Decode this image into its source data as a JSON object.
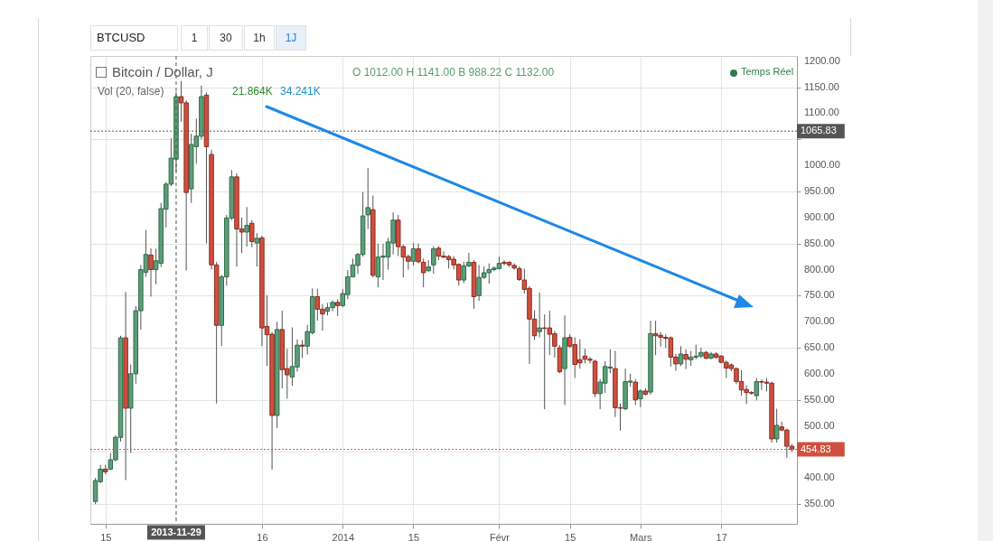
{
  "chart_data": {
    "type": "candlestick",
    "title": "Bitcoin / Dollar, J",
    "annotations": [
      "O 1012.00 H 1141.00 B 988.22 C 1132.00",
      "Vol (20, false)",
      "21.864K",
      "34.241K",
      "Temps Réel",
      "BTCUSD",
      "1",
      "30",
      "1h",
      "1J"
    ],
    "x": [
      "2013-11-13",
      "2013-11-14",
      "2013-11-15",
      "2013-11-16",
      "2013-11-17",
      "2013-11-18",
      "2013-11-19",
      "2013-11-20",
      "2013-11-21",
      "2013-11-22",
      "2013-11-23",
      "2013-11-24",
      "2013-11-25",
      "2013-11-26",
      "2013-11-27",
      "2013-11-28",
      "2013-11-29",
      "2013-11-30",
      "2013-12-01",
      "2013-12-02",
      "2013-12-03",
      "2013-12-04",
      "2013-12-05",
      "2013-12-06",
      "2013-12-07",
      "2013-12-08",
      "2013-12-09",
      "2013-12-10",
      "2013-12-11",
      "2013-12-12",
      "2013-12-13",
      "2013-12-14",
      "2013-12-15",
      "2013-12-16",
      "2013-12-17",
      "2013-12-18",
      "2013-12-19",
      "2013-12-20",
      "2013-12-21",
      "2013-12-22",
      "2013-12-23",
      "2013-12-24",
      "2013-12-25",
      "2013-12-26",
      "2013-12-27",
      "2013-12-28",
      "2013-12-29",
      "2013-12-30",
      "2013-12-31",
      "2014-01-01",
      "2014-01-02",
      "2014-01-03",
      "2014-01-04",
      "2014-01-05",
      "2014-01-06",
      "2014-01-07",
      "2014-01-08",
      "2014-01-09",
      "2014-01-10",
      "2014-01-11",
      "2014-01-12",
      "2014-01-13",
      "2014-01-14",
      "2014-01-15",
      "2014-01-16",
      "2014-01-17",
      "2014-01-18",
      "2014-01-19",
      "2014-01-20",
      "2014-01-21",
      "2014-01-22",
      "2014-01-23",
      "2014-01-24",
      "2014-01-25",
      "2014-01-26",
      "2014-01-27",
      "2014-01-28",
      "2014-01-29",
      "2014-01-30",
      "2014-01-31",
      "2014-02-01",
      "2014-02-02",
      "2014-02-03",
      "2014-02-04",
      "2014-02-05",
      "2014-02-06",
      "2014-02-07",
      "2014-02-08",
      "2014-02-09",
      "2014-02-10",
      "2014-02-11",
      "2014-02-12",
      "2014-02-13",
      "2014-02-14",
      "2014-02-15",
      "2014-02-16",
      "2014-02-17",
      "2014-02-18",
      "2014-02-19",
      "2014-02-20",
      "2014-02-21",
      "2014-02-22",
      "2014-02-23",
      "2014-02-24",
      "2014-02-25",
      "2014-02-26",
      "2014-02-27",
      "2014-02-28",
      "2014-03-01",
      "2014-03-02",
      "2014-03-03",
      "2014-03-04",
      "2014-03-05",
      "2014-03-06",
      "2014-03-07",
      "2014-03-08",
      "2014-03-09",
      "2014-03-10",
      "2014-03-11",
      "2014-03-12",
      "2014-03-13",
      "2014-03-14",
      "2014-03-15",
      "2014-03-16",
      "2014-03-17",
      "2014-03-18",
      "2014-03-19",
      "2014-03-20",
      "2014-03-21",
      "2014-03-22",
      "2014-03-23",
      "2014-03-24",
      "2014-03-25",
      "2014-03-26",
      "2014-03-27",
      "2014-03-28",
      "2014-03-29",
      "2014-03-30",
      "2014-03-31"
    ],
    "ohlc": [
      [
        355,
        400,
        350,
        395
      ],
      [
        393,
        425,
        390,
        417
      ],
      [
        417,
        425,
        407,
        412
      ],
      [
        417,
        448,
        415,
        435
      ],
      [
        435,
        482,
        432,
        478
      ],
      [
        478,
        673,
        470,
        669
      ],
      [
        669,
        757,
        396,
        534
      ],
      [
        534,
        618,
        448,
        600
      ],
      [
        600,
        730,
        581,
        721
      ],
      [
        721,
        809,
        685,
        800
      ],
      [
        795,
        876,
        786,
        829
      ],
      [
        828,
        841,
        748,
        800
      ],
      [
        800,
        840,
        772,
        817
      ],
      [
        812,
        928,
        805,
        917
      ],
      [
        916,
        968,
        881,
        964
      ],
      [
        964,
        1052,
        960,
        1014
      ],
      [
        1012,
        1141,
        988.22,
        1132
      ],
      [
        1132,
        1162,
        1084,
        1120
      ],
      [
        1120,
        1125,
        798,
        948
      ],
      [
        955,
        1061,
        928,
        1040
      ],
      [
        1036,
        1090,
        1003,
        1056
      ],
      [
        1056,
        1153,
        1050,
        1132
      ],
      [
        1135,
        1140,
        850,
        1036
      ],
      [
        1021,
        1030,
        800,
        809
      ],
      [
        809,
        815,
        543,
        693
      ],
      [
        693,
        790,
        653,
        786
      ],
      [
        786,
        905,
        769,
        899
      ],
      [
        899,
        991,
        895,
        978
      ],
      [
        978,
        985,
        806,
        878
      ],
      [
        878,
        900,
        832,
        872
      ],
      [
        872,
        920,
        844,
        885
      ],
      [
        889,
        895,
        843,
        854
      ],
      [
        851,
        870,
        806,
        860
      ],
      [
        861,
        865,
        653,
        688
      ],
      [
        691,
        751,
        615,
        675
      ],
      [
        676,
        680,
        416,
        520
      ],
      [
        520,
        700,
        496,
        685
      ],
      [
        685,
        721,
        572,
        608
      ],
      [
        610,
        648,
        552,
        598
      ],
      [
        594,
        689,
        577,
        614
      ],
      [
        613,
        666,
        604,
        655
      ],
      [
        655,
        665,
        630,
        653
      ],
      [
        653,
        694,
        637,
        681
      ],
      [
        679,
        764,
        675,
        748
      ],
      [
        748,
        763,
        702,
        724
      ],
      [
        724,
        734,
        683,
        715
      ],
      [
        720,
        736,
        712,
        727
      ],
      [
        727,
        741,
        720,
        737
      ],
      [
        737,
        743,
        711,
        731
      ],
      [
        731,
        763,
        728,
        754
      ],
      [
        752,
        799,
        743,
        786
      ],
      [
        786,
        821,
        785,
        809
      ],
      [
        808,
        832,
        792,
        829
      ],
      [
        829,
        949,
        825,
        903
      ],
      [
        905,
        995,
        878,
        919
      ],
      [
        915,
        942,
        785,
        789
      ],
      [
        786,
        850,
        766,
        824
      ],
      [
        824,
        850,
        780,
        826
      ],
      [
        824,
        861,
        800,
        853
      ],
      [
        851,
        910,
        829,
        895
      ],
      [
        895,
        905,
        826,
        844
      ],
      [
        844,
        848,
        785,
        824
      ],
      [
        825,
        829,
        800,
        816
      ],
      [
        816,
        851,
        808,
        840
      ],
      [
        840,
        850,
        812,
        815
      ],
      [
        814,
        821,
        766,
        794
      ],
      [
        798,
        818,
        795,
        805
      ],
      [
        809,
        845,
        792,
        840
      ],
      [
        841,
        845,
        818,
        826
      ],
      [
        826,
        835,
        822,
        824
      ],
      [
        825,
        828,
        802,
        819
      ],
      [
        820,
        826,
        800,
        809
      ],
      [
        810,
        812,
        769,
        780
      ],
      [
        780,
        815,
        774,
        807
      ],
      [
        807,
        832,
        805,
        814
      ],
      [
        814,
        818,
        725,
        748
      ],
      [
        750,
        809,
        740,
        785
      ],
      [
        785,
        806,
        782,
        794
      ],
      [
        794,
        812,
        773,
        800
      ],
      [
        800,
        806,
        797,
        803
      ],
      [
        802,
        825,
        800,
        812
      ],
      [
        814,
        818,
        808,
        812
      ],
      [
        814,
        816,
        805,
        809
      ],
      [
        808,
        812,
        800,
        803
      ],
      [
        802,
        806,
        778,
        781
      ],
      [
        780,
        802,
        754,
        762
      ],
      [
        764,
        768,
        619,
        705
      ],
      [
        705,
        722,
        665,
        673
      ],
      [
        681,
        756,
        670,
        688
      ],
      [
        688,
        714,
        532,
        687
      ],
      [
        688,
        721,
        636,
        676
      ],
      [
        677,
        682,
        631,
        653
      ],
      [
        650,
        655,
        601,
        604
      ],
      [
        610,
        712,
        540,
        669
      ],
      [
        670,
        676,
        650,
        653
      ],
      [
        656,
        670,
        592,
        618
      ],
      [
        627,
        666,
        610,
        621
      ],
      [
        634,
        648,
        620,
        628
      ],
      [
        628,
        632,
        620,
        626
      ],
      [
        624,
        627,
        555,
        562
      ],
      [
        562,
        590,
        532,
        584
      ],
      [
        582,
        624,
        563,
        614
      ],
      [
        611,
        647,
        601,
        613
      ],
      [
        610,
        644,
        517,
        535
      ],
      [
        535,
        543,
        491,
        534
      ],
      [
        533,
        610,
        530,
        585
      ],
      [
        584,
        600,
        575,
        586
      ],
      [
        584,
        590,
        540,
        550
      ],
      [
        552,
        570,
        536,
        567
      ],
      [
        567,
        572,
        558,
        561
      ],
      [
        565,
        702,
        560,
        677
      ],
      [
        677,
        702,
        636,
        673
      ],
      [
        674,
        680,
        652,
        670
      ],
      [
        670,
        676,
        650,
        668
      ],
      [
        669,
        672,
        614,
        632
      ],
      [
        632,
        638,
        606,
        619
      ],
      [
        619,
        653,
        615,
        638
      ],
      [
        637,
        647,
        609,
        628
      ],
      [
        627,
        644,
        615,
        632
      ],
      [
        632,
        656,
        628,
        634
      ],
      [
        634,
        650,
        630,
        641
      ],
      [
        641,
        644,
        628,
        630
      ],
      [
        630,
        642,
        628,
        638
      ],
      [
        638,
        641,
        629,
        632
      ],
      [
        634,
        636,
        620,
        622
      ],
      [
        622,
        625,
        592,
        611
      ],
      [
        617,
        620,
        605,
        610
      ],
      [
        610,
        612,
        580,
        585
      ],
      [
        585,
        607,
        558,
        569
      ],
      [
        570,
        578,
        542,
        564
      ],
      [
        564,
        567,
        560,
        563
      ],
      [
        558,
        592,
        549,
        585
      ],
      [
        585,
        589,
        569,
        584
      ],
      [
        584,
        592,
        566,
        582
      ],
      [
        582,
        585,
        468,
        475
      ],
      [
        475,
        533,
        468,
        501
      ],
      [
        498,
        508,
        490,
        492
      ],
      [
        492,
        495,
        439,
        461
      ],
      [
        461,
        465,
        450,
        454.83
      ]
    ],
    "xlim": [
      "2013-11-12",
      "2014-04-01"
    ],
    "xticks": [
      {
        "value": "2013-11-15",
        "label": "15"
      },
      {
        "value": "2013-12-16",
        "label": "16"
      },
      {
        "value": "2014-01-01",
        "label": "2014"
      },
      {
        "value": "2014-01-15",
        "label": "15"
      },
      {
        "value": "2014-02-01",
        "label": "Févr"
      },
      {
        "value": "2014-02-15",
        "label": "15"
      },
      {
        "value": "2014-03-01",
        "label": "Mars"
      },
      {
        "value": "2014-03-17",
        "label": "17"
      }
    ],
    "ylim": [
      312,
      1210
    ],
    "yticks": [
      {
        "value": 350,
        "label": "350.00"
      },
      {
        "value": 400,
        "label": "400.00"
      },
      {
        "value": 450,
        "label": null
      },
      {
        "value": 500,
        "label": "500.00"
      },
      {
        "value": 550,
        "label": "550.00"
      },
      {
        "value": 600,
        "label": "600.00"
      },
      {
        "value": 650,
        "label": "650.00"
      },
      {
        "value": 700,
        "label": "700.00"
      },
      {
        "value": 750,
        "label": "750.00"
      },
      {
        "value": 800,
        "label": "800.00"
      },
      {
        "value": 850,
        "label": "850.00"
      },
      {
        "value": 900,
        "label": "900.00"
      },
      {
        "value": 950,
        "label": "950.00"
      },
      {
        "value": 1000,
        "label": "1000.00"
      },
      {
        "value": 1050,
        "label": null
      },
      {
        "value": 1100,
        "label": "1100.00"
      },
      {
        "value": 1150,
        "label": "1150.00"
      },
      {
        "value": 1200,
        "label": "1200.00"
      }
    ],
    "ref_lines": [
      {
        "axis": "y",
        "value": 1065.83,
        "label": "1065.83",
        "color": "#555555",
        "line_style": "dotted"
      },
      {
        "axis": "y",
        "value": 454.83,
        "label": "454.83",
        "color": "#d0503f",
        "line_style": "dotted"
      },
      {
        "axis": "x",
        "value": "2013-11-29",
        "label": "2013-11-29",
        "color": "#555555",
        "line_style": "dashed"
      }
    ],
    "grid": true
  }
}
